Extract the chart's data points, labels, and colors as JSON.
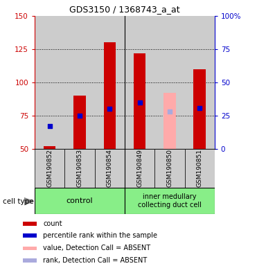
{
  "title": "GDS3150 / 1368743_a_at",
  "samples": [
    "GSM190852",
    "GSM190853",
    "GSM190854",
    "GSM190849",
    "GSM190850",
    "GSM190851"
  ],
  "count_values": [
    52,
    90,
    130,
    122,
    null,
    110
  ],
  "count_absent": [
    null,
    null,
    null,
    null,
    92,
    null
  ],
  "percentile_left": [
    67,
    75,
    80,
    85,
    null,
    81
  ],
  "percentile_left_absent": [
    null,
    null,
    null,
    null,
    78,
    null
  ],
  "group_divider": 2.5,
  "ylim_left": [
    50,
    150
  ],
  "ylim_right": [
    0,
    100
  ],
  "yticks_left": [
    50,
    75,
    100,
    125,
    150
  ],
  "ytick_labels_left": [
    "50",
    "75",
    "100",
    "125",
    "150"
  ],
  "yticks_right": [
    0,
    25,
    50,
    75,
    100
  ],
  "ytick_labels_right": [
    "0",
    "25",
    "50",
    "75",
    "100%"
  ],
  "bar_color": "#cc0000",
  "bar_absent_color": "#ffaaaa",
  "dot_color": "#0000cc",
  "dot_absent_color": "#aaaadd",
  "bg_color": "#cccccc",
  "left_axis_color": "#cc0000",
  "right_axis_color": "#0000cc",
  "bar_width": 0.4,
  "dot_size": 18,
  "legend_items": [
    {
      "label": "count",
      "color": "#cc0000"
    },
    {
      "label": "percentile rank within the sample",
      "color": "#0000cc"
    },
    {
      "label": "value, Detection Call = ABSENT",
      "color": "#ffaaaa"
    },
    {
      "label": "rank, Detection Call = ABSENT",
      "color": "#aaaadd"
    }
  ],
  "group1_label": "control",
  "group2_label": "inner medullary\ncollecting duct cell",
  "group_color": "#88ee88",
  "cell_type_label": "cell type"
}
